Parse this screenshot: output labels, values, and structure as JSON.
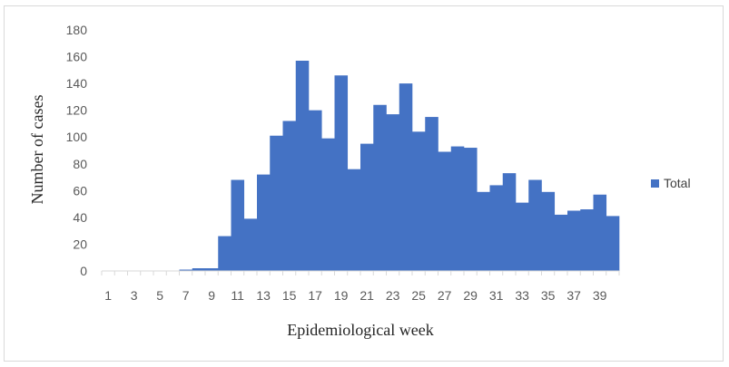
{
  "chart_data": {
    "type": "bar",
    "title": "",
    "xlabel": "Epidemiological week",
    "ylabel": "Number of cases",
    "ylim": [
      0,
      180
    ],
    "yticks": [
      0,
      20,
      40,
      60,
      80,
      100,
      120,
      140,
      160,
      180
    ],
    "x": [
      1,
      2,
      3,
      4,
      5,
      6,
      7,
      8,
      9,
      10,
      11,
      12,
      13,
      14,
      15,
      16,
      17,
      18,
      19,
      20,
      21,
      22,
      23,
      24,
      25,
      26,
      27,
      28,
      29,
      30,
      31,
      32,
      33,
      34,
      35,
      36,
      37,
      38,
      39,
      40
    ],
    "x_tick_labels": [
      "1",
      "3",
      "5",
      "7",
      "9",
      "11",
      "13",
      "15",
      "17",
      "19",
      "21",
      "23",
      "25",
      "27",
      "29",
      "31",
      "33",
      "35",
      "37",
      "39"
    ],
    "series": [
      {
        "name": "Total",
        "color": "#4472C4",
        "values": [
          0,
          0,
          0,
          0,
          0,
          0,
          1,
          2,
          2,
          26,
          68,
          39,
          72,
          101,
          112,
          157,
          120,
          99,
          146,
          76,
          95,
          124,
          117,
          140,
          104,
          115,
          89,
          93,
          92,
          59,
          64,
          73,
          51,
          68,
          59,
          42,
          45,
          46,
          57,
          41
        ]
      }
    ],
    "grid": false,
    "legend_position": "right"
  }
}
